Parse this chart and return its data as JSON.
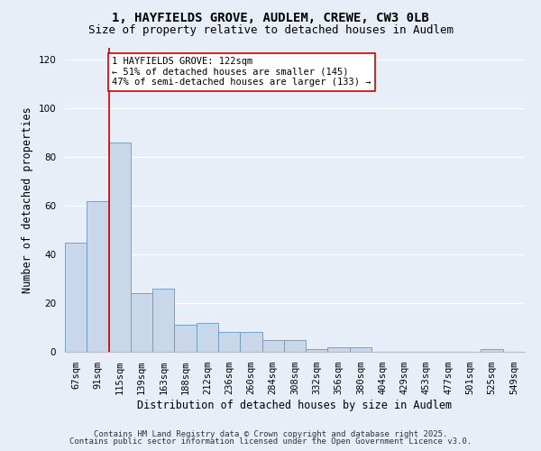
{
  "title1": "1, HAYFIELDS GROVE, AUDLEM, CREWE, CW3 0LB",
  "title2": "Size of property relative to detached houses in Audlem",
  "xlabel": "Distribution of detached houses by size in Audlem",
  "ylabel": "Number of detached properties",
  "categories": [
    "67sqm",
    "91sqm",
    "115sqm",
    "139sqm",
    "163sqm",
    "188sqm",
    "212sqm",
    "236sqm",
    "260sqm",
    "284sqm",
    "308sqm",
    "332sqm",
    "356sqm",
    "380sqm",
    "404sqm",
    "429sqm",
    "453sqm",
    "477sqm",
    "501sqm",
    "525sqm",
    "549sqm"
  ],
  "values": [
    45,
    62,
    86,
    24,
    26,
    11,
    12,
    8,
    8,
    5,
    5,
    1,
    2,
    2,
    0,
    0,
    0,
    0,
    0,
    1,
    0
  ],
  "bar_color": "#c8d8ea",
  "bar_edge_color": "#6699bb",
  "background_color": "#e8eef8",
  "grid_color": "#ffffff",
  "vline_color": "#cc0000",
  "annotation_text": "1 HAYFIELDS GROVE: 122sqm\n← 51% of detached houses are smaller (145)\n47% of semi-detached houses are larger (133) →",
  "annotation_box_color": "#ffffff",
  "annotation_box_edge": "#cc0000",
  "ylim": [
    0,
    125
  ],
  "yticks": [
    0,
    20,
    40,
    60,
    80,
    100,
    120
  ],
  "footnote1": "Contains HM Land Registry data © Crown copyright and database right 2025.",
  "footnote2": "Contains public sector information licensed under the Open Government Licence v3.0.",
  "title_fontsize": 10,
  "subtitle_fontsize": 9,
  "axis_label_fontsize": 8.5,
  "tick_fontsize": 7.5,
  "annotation_fontsize": 7.5,
  "footnote_fontsize": 6.5
}
